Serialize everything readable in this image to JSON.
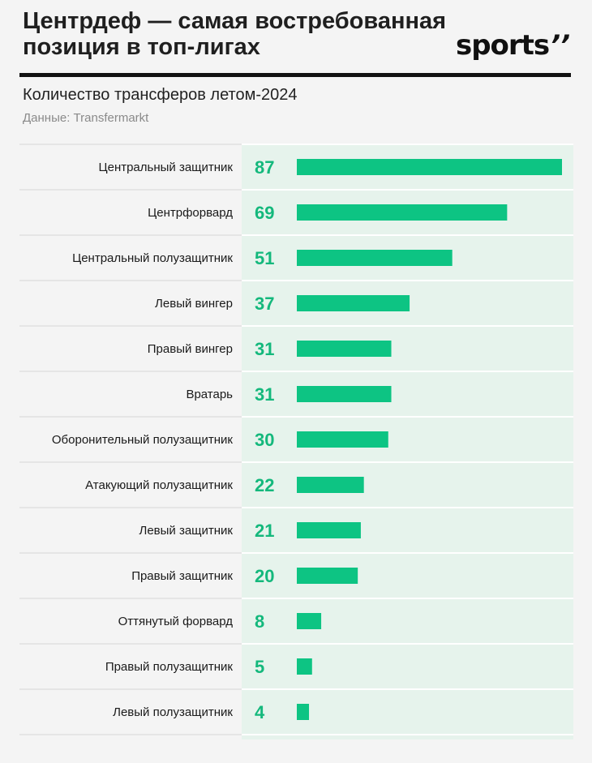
{
  "header": {
    "title": "Центрдеф — самая востребованная позиция в топ-лигах",
    "logo_text": "sports",
    "logo_marks": "’’",
    "subtitle": "Количество трансферов летом-2024",
    "source": "Данные: Transfermarkt"
  },
  "colors": {
    "bar": "#0dc483",
    "value_text": "#14b87c",
    "panel": "#e6f3ec",
    "separator": "#ffffff"
  },
  "chart_data": {
    "type": "bar",
    "orientation": "horizontal",
    "title": "Центрдеф — самая востребованная позиция в топ-лигах",
    "subtitle": "Количество трансферов летом-2024",
    "source": "Данные: Transfermarkt",
    "categories": [
      "Центральный защитник",
      "Центрфорвард",
      "Центральный полузащитник",
      "Левый вингер",
      "Правый вингер",
      "Вратарь",
      "Оборонительный полузащитник",
      "Атакующий полузащитник",
      "Левый защитник",
      "Правый защитник",
      "Оттянутый форвард",
      "Правый полузащитник",
      "Левый полузащитник"
    ],
    "values": [
      87,
      69,
      51,
      37,
      31,
      31,
      30,
      22,
      21,
      20,
      8,
      5,
      4
    ],
    "xlim": [
      0,
      87
    ],
    "grid": false,
    "legend": "none"
  }
}
